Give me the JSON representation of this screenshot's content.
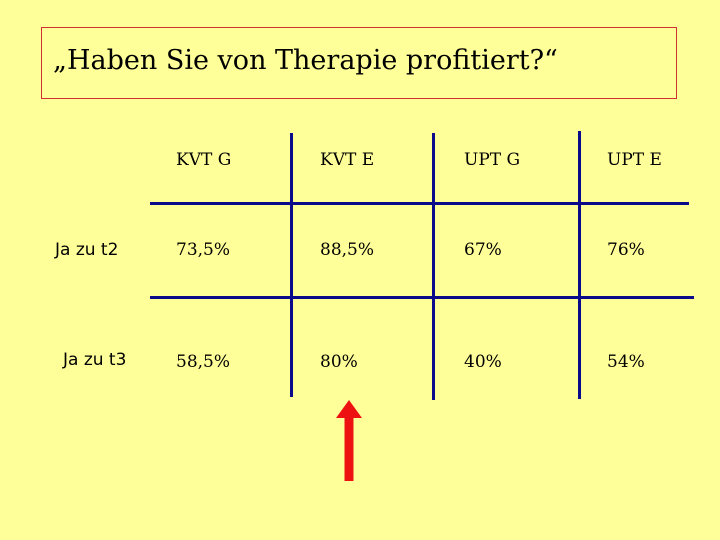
{
  "title": "„Haben Sie von Therapie profitiert?“",
  "table": {
    "columns": [
      "KVT G",
      "KVT E",
      "UPT G",
      "UPT E"
    ],
    "rows": [
      {
        "label": "Ja zu t2",
        "values": [
          "73,5%",
          "88,5%",
          "67%",
          "76%"
        ]
      },
      {
        "label": "Ja zu t3",
        "values": [
          "58,5%",
          "80%",
          "40%",
          "54%"
        ]
      }
    ]
  },
  "arrow": {
    "icon": "up-arrow-icon",
    "color": "#ee1111",
    "points_to": "KVT E"
  },
  "colors": {
    "background": "#ffff99",
    "grid": "#0a0a8a",
    "title_border": "#d03030"
  }
}
